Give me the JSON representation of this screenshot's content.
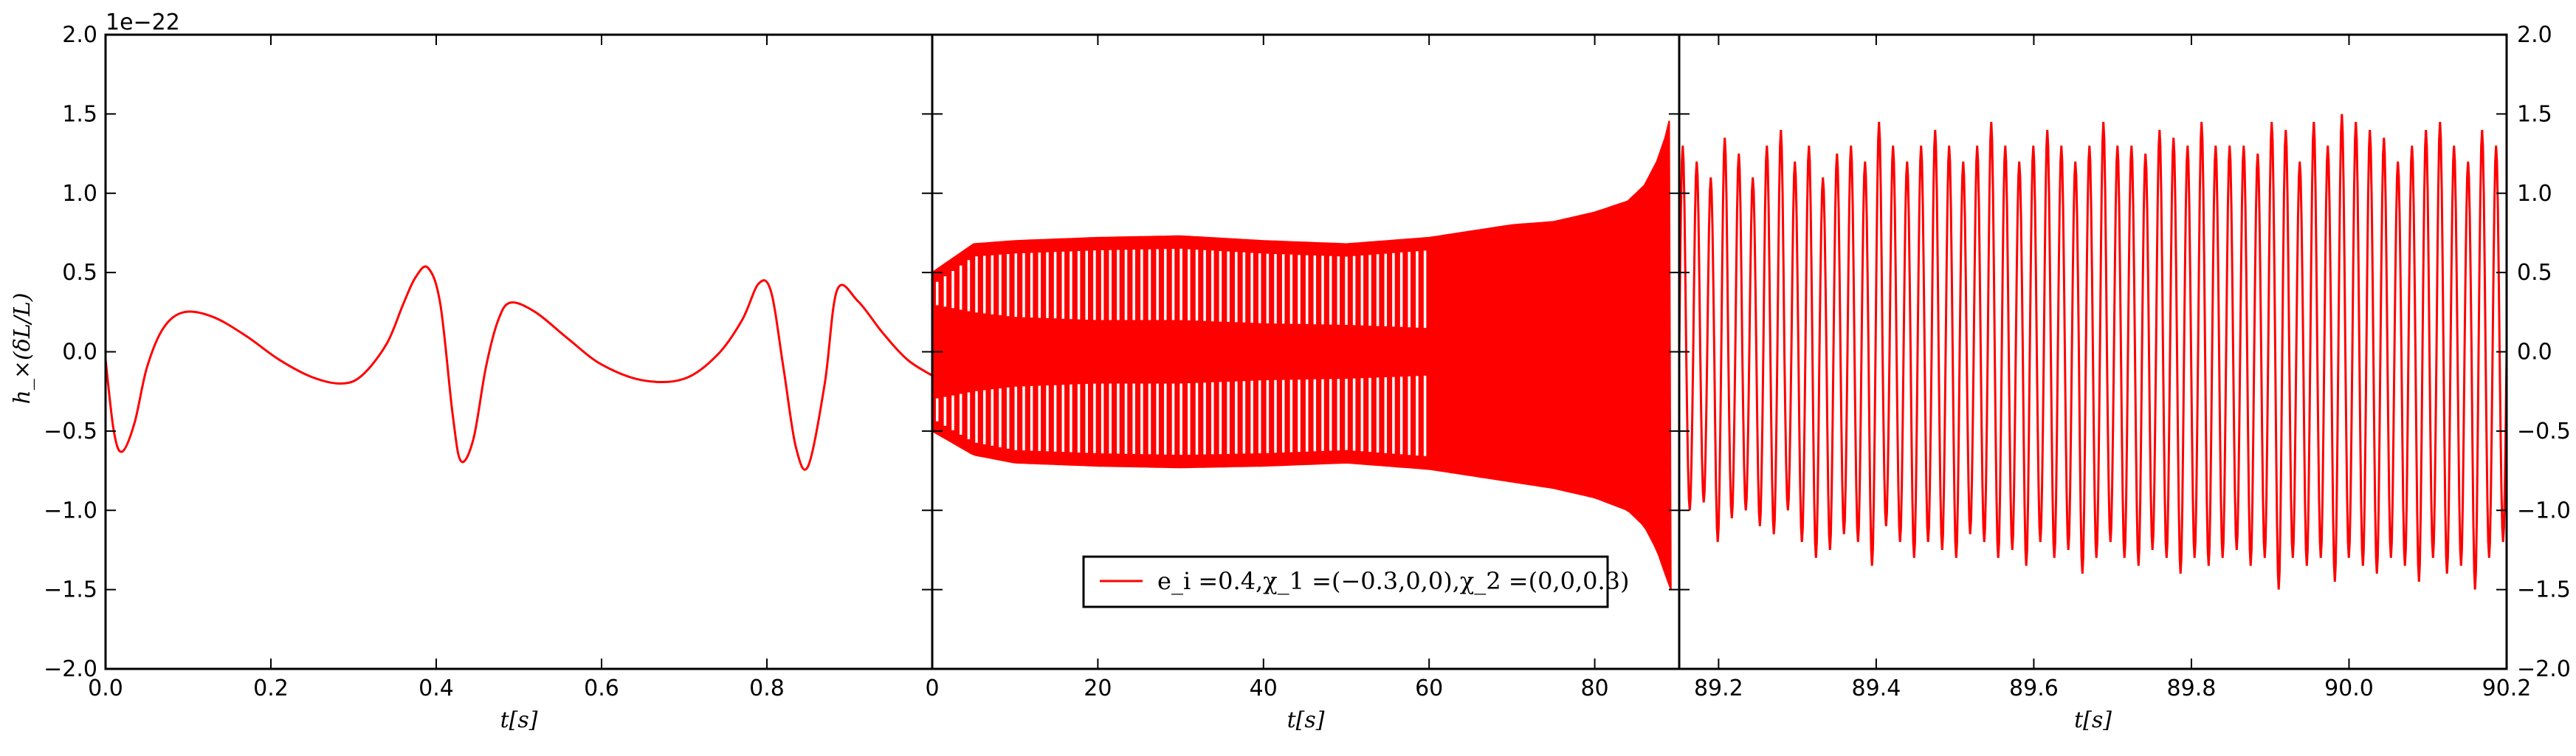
{
  "chart_data": {
    "type": "line",
    "line_color": "#ff0000",
    "ylabel": "h_×(δL/L)",
    "y_multiplier": "1e−22",
    "ylim": [
      -2.0,
      2.0
    ],
    "yticks": [
      "2.0",
      "1.5",
      "1.0",
      "0.5",
      "0.0",
      "−0.5",
      "−1.0",
      "−1.5",
      "−2.0"
    ],
    "ytick_values": [
      2.0,
      1.5,
      1.0,
      0.5,
      0.0,
      -0.5,
      -1.0,
      -1.5,
      -2.0
    ],
    "legend": {
      "placement": "lower-center of middle panel",
      "label": "e_i =0.4,χ_1 =(−0.3,0,0),χ_2 =(0,0,0.3)"
    },
    "panels": [
      {
        "xlabel": "t[s]",
        "xlim": [
          0.0,
          1.0
        ],
        "xticks": [
          "0.0",
          "0.2",
          "0.4",
          "0.6",
          "0.8"
        ],
        "xtick_values": [
          0.0,
          0.2,
          0.4,
          0.6,
          0.8
        ],
        "series": [
          {
            "x": [
              0.0,
              0.01,
              0.02,
              0.035,
              0.05,
              0.07,
              0.095,
              0.13,
              0.17,
              0.21,
              0.25,
              0.285,
              0.31,
              0.34,
              0.36,
              0.375,
              0.39,
              0.405,
              0.42,
              0.43,
              0.445,
              0.46,
              0.475,
              0.49,
              0.52,
              0.56,
              0.6,
              0.65,
              0.7,
              0.74,
              0.77,
              0.79,
              0.805,
              0.82,
              0.835,
              0.85,
              0.87,
              0.885,
              0.91,
              0.94,
              0.97,
              1.0
            ],
            "y": [
              -0.05,
              -0.5,
              -0.63,
              -0.45,
              -0.1,
              0.15,
              0.25,
              0.22,
              0.1,
              -0.05,
              -0.16,
              -0.2,
              -0.15,
              0.05,
              0.3,
              0.47,
              0.53,
              0.3,
              -0.4,
              -0.69,
              -0.55,
              -0.1,
              0.2,
              0.31,
              0.25,
              0.08,
              -0.08,
              -0.18,
              -0.17,
              -0.02,
              0.2,
              0.43,
              0.38,
              -0.1,
              -0.6,
              -0.72,
              -0.2,
              0.39,
              0.32,
              0.12,
              -0.05,
              -0.15
            ]
          }
        ]
      },
      {
        "xlabel": "t[s]",
        "xlim": [
          0,
          90.2
        ],
        "xticks": [
          "0",
          "20",
          "40",
          "60",
          "80"
        ],
        "xtick_values": [
          0,
          20,
          40,
          60,
          80
        ],
        "envelope": {
          "t": [
            0,
            5,
            10,
            20,
            30,
            40,
            50,
            60,
            70,
            75,
            80,
            84,
            86,
            87.5,
            88.5,
            89.2
          ],
          "upper": [
            0.5,
            0.68,
            0.7,
            0.72,
            0.73,
            0.7,
            0.68,
            0.72,
            0.8,
            0.82,
            0.88,
            0.95,
            1.05,
            1.2,
            1.35,
            1.5
          ],
          "lower": [
            -0.5,
            -0.65,
            -0.7,
            -0.72,
            -0.73,
            -0.72,
            -0.7,
            -0.74,
            -0.82,
            -0.86,
            -0.92,
            -1.0,
            -1.1,
            -1.25,
            -1.4,
            -1.5
          ],
          "inner": [
            0.3,
            0.25,
            0.22,
            0.2,
            0.2,
            0.18,
            0.17,
            0.15,
            0.12,
            0.1,
            0.08,
            0.05,
            0.03,
            0.0,
            0.0,
            0.0
          ]
        }
      },
      {
        "xlabel": "t[s]",
        "xlim": [
          89.15,
          90.2
        ],
        "xticks": [
          "89.2",
          "89.4",
          "89.6",
          "89.8",
          "90.0",
          "90.2"
        ],
        "xtick_values": [
          89.2,
          89.4,
          89.6,
          89.8,
          90.0,
          90.2
        ],
        "oscillation": {
          "cycles": 59,
          "peaks": [
            1.3,
            1.2,
            1.1,
            1.35,
            1.25,
            1.1,
            1.3,
            1.4,
            1.2,
            1.3,
            1.1,
            1.25,
            1.3,
            1.2,
            1.45,
            1.3,
            1.2,
            1.3,
            1.4,
            1.3,
            1.2,
            1.3,
            1.45,
            1.3,
            1.2,
            1.3,
            1.4,
            1.3,
            1.2,
            1.3,
            1.45,
            1.3,
            1.3,
            1.25,
            1.4,
            1.35,
            1.3,
            1.45,
            1.3,
            1.3,
            1.3,
            1.25,
            1.45,
            1.4,
            1.2,
            1.45,
            1.3,
            1.5,
            1.45,
            1.4,
            1.35,
            1.2,
            1.3,
            1.4,
            1.45,
            1.3,
            1.2,
            1.4,
            1.3
          ],
          "troughs": [
            -1.0,
            -0.95,
            -1.2,
            -1.05,
            -1.0,
            -1.1,
            -1.15,
            -1.0,
            -1.2,
            -1.3,
            -1.25,
            -1.15,
            -1.2,
            -1.35,
            -1.1,
            -1.2,
            -1.3,
            -1.2,
            -1.25,
            -1.3,
            -1.15,
            -1.2,
            -1.3,
            -1.25,
            -1.35,
            -1.2,
            -1.3,
            -1.25,
            -1.4,
            -1.3,
            -1.2,
            -1.3,
            -1.35,
            -1.25,
            -1.3,
            -1.4,
            -1.3,
            -1.35,
            -1.3,
            -1.25,
            -1.35,
            -1.3,
            -1.5,
            -1.3,
            -1.35,
            -1.3,
            -1.45,
            -1.3,
            -1.35,
            -1.4,
            -1.3,
            -1.35,
            -1.45,
            -1.3,
            -1.4,
            -1.35,
            -1.5,
            -1.3,
            -1.2
          ]
        }
      }
    ]
  }
}
